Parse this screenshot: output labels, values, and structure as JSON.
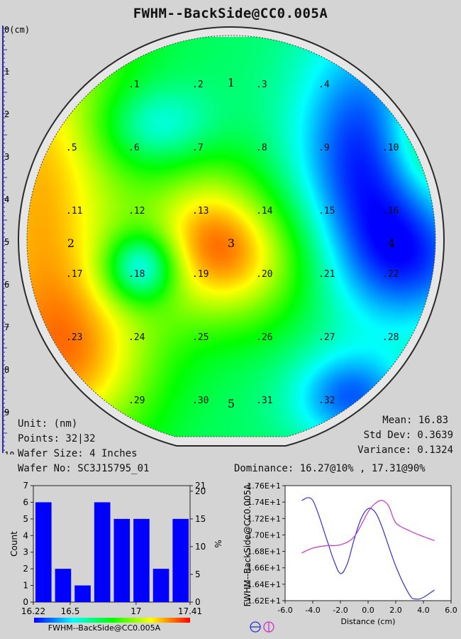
{
  "title": "FWHM--BackSide@CC0.005A",
  "chart_data": [
    {
      "type": "heatmap",
      "title": "FWHM--BackSide@CC0.005A",
      "ruler": {
        "unit_label": "0(cm)",
        "ticks": [
          "1",
          "2",
          "3",
          "4",
          "5",
          "6",
          "7",
          "8",
          "9",
          "10"
        ]
      },
      "sites": [
        {
          "label": ".1",
          "col": 1,
          "row": 0
        },
        {
          "label": ".2",
          "col": 2,
          "row": 0
        },
        {
          "label": ".3",
          "col": 3,
          "row": 0
        },
        {
          "label": ".4",
          "col": 4,
          "row": 0
        },
        {
          "label": ".5",
          "col": 0,
          "row": 1
        },
        {
          "label": ".6",
          "col": 1,
          "row": 1
        },
        {
          "label": ".7",
          "col": 2,
          "row": 1
        },
        {
          "label": ".8",
          "col": 3,
          "row": 1
        },
        {
          "label": ".9",
          "col": 4,
          "row": 1
        },
        {
          "label": ".10",
          "col": 5,
          "row": 1
        },
        {
          "label": ".11",
          "col": 0,
          "row": 2
        },
        {
          "label": ".12",
          "col": 1,
          "row": 2
        },
        {
          "label": ".13",
          "col": 2,
          "row": 2
        },
        {
          "label": ".14",
          "col": 3,
          "row": 2
        },
        {
          "label": ".15",
          "col": 4,
          "row": 2
        },
        {
          "label": ".16",
          "col": 5,
          "row": 2
        },
        {
          "label": ".17",
          "col": 0,
          "row": 3
        },
        {
          "label": ".18",
          "col": 1,
          "row": 3
        },
        {
          "label": ".19",
          "col": 2,
          "row": 3
        },
        {
          "label": ".20",
          "col": 3,
          "row": 3
        },
        {
          "label": ".21",
          "col": 4,
          "row": 3
        },
        {
          "label": ".22",
          "col": 5,
          "row": 3
        },
        {
          "label": ".23",
          "col": 0,
          "row": 4
        },
        {
          "label": ".24",
          "col": 1,
          "row": 4
        },
        {
          "label": ".25",
          "col": 2,
          "row": 4
        },
        {
          "label": ".26",
          "col": 3,
          "row": 4
        },
        {
          "label": ".27",
          "col": 4,
          "row": 4
        },
        {
          "label": ".28",
          "col": 5,
          "row": 4
        },
        {
          "label": ".29",
          "col": 1,
          "row": 5
        },
        {
          "label": ".30",
          "col": 2,
          "row": 5
        },
        {
          "label": ".31",
          "col": 3,
          "row": 5
        },
        {
          "label": ".32",
          "col": 4,
          "row": 5
        }
      ],
      "zone_labels": [
        "1",
        "2",
        "3",
        "4",
        "5"
      ],
      "blobs": [
        {
          "cx": 0.03,
          "cy": 0.42,
          "sx": 0.16,
          "sy": 0.45,
          "amp": 0.85
        },
        {
          "cx": 0.15,
          "cy": 0.8,
          "sx": 0.14,
          "sy": 0.14,
          "amp": 0.45
        },
        {
          "cx": 0.5,
          "cy": 0.55,
          "sx": 0.14,
          "sy": 0.12,
          "amp": 0.75
        },
        {
          "cx": 0.44,
          "cy": 0.43,
          "sx": 0.1,
          "sy": 0.12,
          "amp": 0.35
        },
        {
          "cx": 0.82,
          "cy": 0.3,
          "sx": 0.12,
          "sy": 0.22,
          "amp": -0.75
        },
        {
          "cx": 0.95,
          "cy": 0.55,
          "sx": 0.12,
          "sy": 0.12,
          "amp": -0.55
        },
        {
          "cx": 0.79,
          "cy": 0.89,
          "sx": 0.1,
          "sy": 0.08,
          "amp": -0.6
        },
        {
          "cx": 0.28,
          "cy": 0.57,
          "sx": 0.06,
          "sy": 0.06,
          "amp": -0.8
        },
        {
          "cx": 0.31,
          "cy": 0.22,
          "sx": 0.1,
          "sy": 0.07,
          "amp": -0.4
        },
        {
          "cx": 0.98,
          "cy": 0.25,
          "sx": 0.08,
          "sy": 0.1,
          "amp": 0.35
        }
      ],
      "base_level": 0.4
    },
    {
      "type": "bar",
      "xlabel": "FWHM--BackSide@CC0.005A",
      "ylabel": "Count",
      "y2label": "%",
      "ylim": [
        0,
        7
      ],
      "y2lim": [
        0,
        21
      ],
      "yticks": [
        "0",
        "1",
        "2",
        "3",
        "4",
        "5",
        "6",
        "7"
      ],
      "y2ticks": [
        "0",
        "5",
        "10",
        "15",
        "20",
        "21"
      ],
      "xticks": [
        "16.22",
        "16.5",
        "17",
        "17.41"
      ],
      "xlim": [
        16.22,
        17.41
      ],
      "xtick_values": [
        16.22,
        16.5,
        17,
        17.41
      ],
      "values": [
        6,
        2,
        1,
        6,
        5,
        5,
        2,
        5
      ]
    },
    {
      "type": "line",
      "xlabel": "Distance (cm)",
      "ylabel": "FWHM--BackSide@CC0.005A",
      "xlim": [
        -6,
        6
      ],
      "ylim": [
        16.2,
        17.6
      ],
      "xticks": [
        "-6.0",
        "-4.0",
        "-2.0",
        "0.0",
        "2.0",
        "4.0",
        "6.0"
      ],
      "xtick_values": [
        -6,
        -4,
        -2,
        0,
        2,
        4,
        6
      ],
      "yticks": [
        "1.62E+1",
        "1.64E+1",
        "1.66E+1",
        "1.68E+1",
        "1.70E+1",
        "1.72E+1",
        "1.74E+1",
        "1.76E+1"
      ],
      "ytick_values": [
        16.2,
        16.4,
        16.6,
        16.8,
        17.0,
        17.2,
        17.4,
        17.6
      ],
      "series": [
        {
          "color": "#3232c8",
          "x": [
            -4.8,
            -4.0,
            -3.0,
            -2.5,
            -2.0,
            -1.5,
            -1.0,
            -0.5,
            0.0,
            0.5,
            1.0,
            2.0,
            3.0,
            3.5,
            4.0,
            4.8
          ],
          "y": [
            17.42,
            17.42,
            16.95,
            16.7,
            16.53,
            16.65,
            16.95,
            17.2,
            17.32,
            17.28,
            17.1,
            16.62,
            16.27,
            16.22,
            16.24,
            16.33
          ]
        },
        {
          "color": "#c832c8",
          "x": [
            -4.8,
            -4.0,
            -3.0,
            -2.0,
            -1.0,
            0.0,
            0.5,
            1.0,
            1.5,
            2.0,
            3.0,
            4.0,
            4.8
          ],
          "y": [
            16.78,
            16.84,
            16.87,
            16.88,
            16.98,
            17.28,
            17.38,
            17.42,
            17.35,
            17.15,
            17.05,
            16.98,
            16.93
          ]
        }
      ]
    }
  ],
  "colorbar_label": "FWHM--BackSide@CC0.005A",
  "stats": {
    "unit": "Unit: (nm)",
    "points": "Points: 32|32",
    "wafer_size": "Wafer Size: 4 Inches",
    "wafer_no": "Wafer No: SC3J15795_01",
    "mean": "Mean: 16.83",
    "std_dev": "Std Dev: 0.3639",
    "variance": "Variance: 0.1324",
    "dominance": "Dominance: 16.27@10% , 17.31@90%"
  },
  "colors": {
    "background": "#d4d4d4",
    "wafer_border": "#2a2a2a",
    "bar": "#0000ff"
  }
}
